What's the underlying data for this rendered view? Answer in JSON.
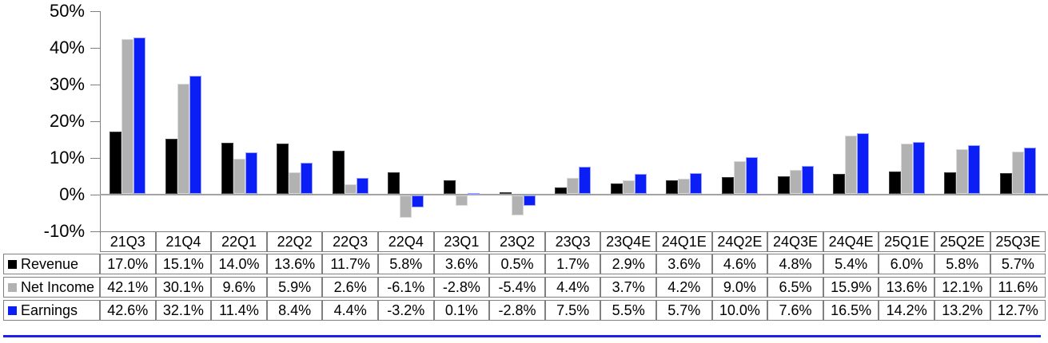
{
  "chart_data": {
    "type": "bar",
    "title": "",
    "xlabel": "",
    "ylabel": "",
    "ylim": [
      -10,
      50
    ],
    "ytick_step": 10,
    "ytick_labels": [
      "50%",
      "40%",
      "30%",
      "20%",
      "10%",
      "0%",
      "-10%"
    ],
    "grid": "zero-baseline-only",
    "legend_position": "data-table-left-column",
    "categories": [
      "21Q3",
      "21Q4",
      "22Q1",
      "22Q2",
      "22Q3",
      "22Q4",
      "23Q1",
      "23Q2",
      "23Q3",
      "23Q4E",
      "24Q1E",
      "24Q2E",
      "24Q3E",
      "24Q4E",
      "25Q1E",
      "25Q2E",
      "25Q3E"
    ],
    "series": [
      {
        "name": "Revenue",
        "color": "#000000",
        "border_color": "#3c3c3c",
        "values": [
          17.0,
          15.1,
          14.0,
          13.6,
          11.7,
          5.8,
          3.6,
          0.5,
          1.7,
          2.9,
          3.6,
          4.6,
          4.8,
          5.4,
          6.0,
          5.8,
          5.7
        ],
        "display": [
          "17.0%",
          "15.1%",
          "14.0%",
          "13.6%",
          "11.7%",
          "5.8%",
          "3.6%",
          "0.5%",
          "1.7%",
          "2.9%",
          "3.6%",
          "4.6%",
          "4.8%",
          "5.4%",
          "6.0%",
          "5.8%",
          "5.7%"
        ]
      },
      {
        "name": "Net Income",
        "color": "#b2b2b2",
        "border_color": "#d9d9d9",
        "values": [
          42.1,
          30.1,
          9.6,
          5.9,
          2.6,
          -6.1,
          -2.8,
          -5.4,
          4.4,
          3.7,
          4.2,
          9.0,
          6.5,
          15.9,
          13.6,
          12.1,
          11.6
        ],
        "display": [
          "42.1%",
          "30.1%",
          "9.6%",
          "5.9%",
          "2.6%",
          "-6.1%",
          "-2.8%",
          "-5.4%",
          "4.4%",
          "3.7%",
          "4.2%",
          "9.0%",
          "6.5%",
          "15.9%",
          "13.6%",
          "12.1%",
          "11.6%"
        ]
      },
      {
        "name": "Earnings",
        "color": "#0a1ef5",
        "border_color": "#9aa4f8",
        "values": [
          42.6,
          32.1,
          11.4,
          8.4,
          4.4,
          -3.2,
          0.1,
          -2.8,
          7.5,
          5.5,
          5.7,
          10.0,
          7.6,
          16.5,
          14.2,
          13.2,
          12.7
        ],
        "display": [
          "42.6%",
          "32.1%",
          "11.4%",
          "8.4%",
          "4.4%",
          "-3.2%",
          "0.1%",
          "-2.8%",
          "7.5%",
          "5.5%",
          "5.7%",
          "10.0%",
          "7.6%",
          "16.5%",
          "14.2%",
          "13.2%",
          "12.7%"
        ]
      }
    ],
    "decorations": {
      "axis_color": "#808080",
      "zero_line_color": "#a3a3a3",
      "table_border_color": "#808080",
      "bottom_rule_color": "#1e1ef0"
    }
  }
}
